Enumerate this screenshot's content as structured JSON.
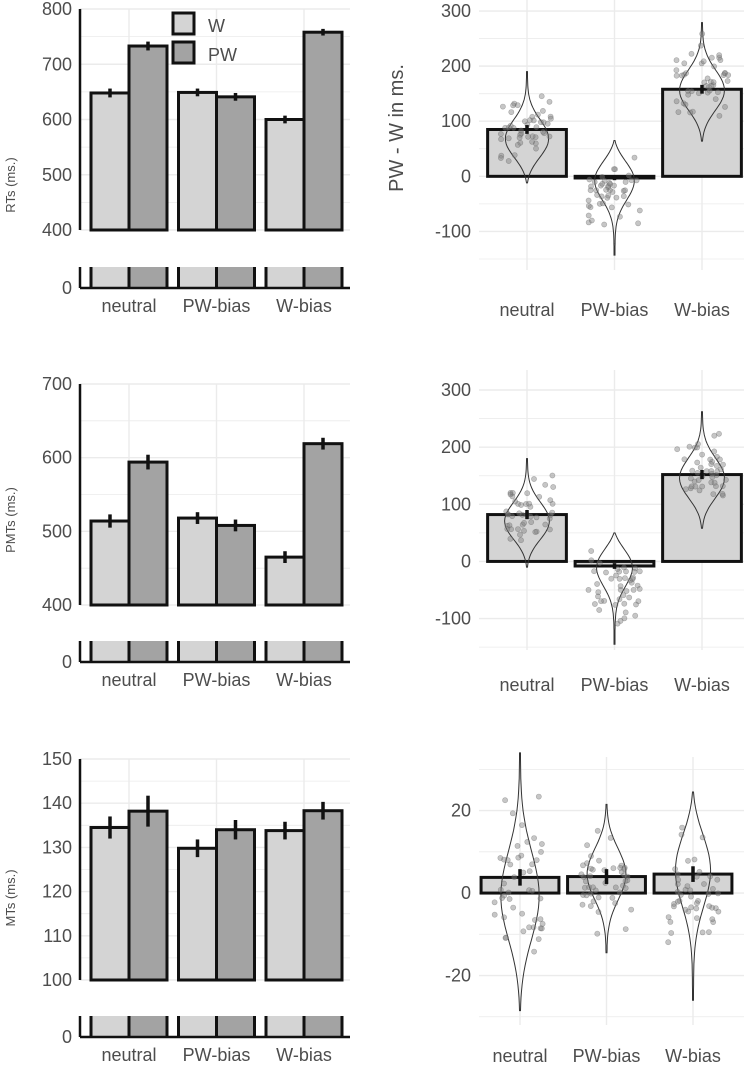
{
  "colors": {
    "w": "#d4d4d4",
    "pw": "#a3a3a3",
    "diff": "#d4d4d4",
    "grid": "#ebebeb",
    "text": "#4d4d4d",
    "dot": "#808080"
  },
  "legend": {
    "w": "W",
    "pw": "PW"
  },
  "shared_y_label": "PW - W in ms.",
  "chart_data": [
    {
      "id": "rt-bars",
      "type": "bar",
      "ylabel": "RTs (ms.)",
      "categories": [
        "neutral",
        "PW-bias",
        "W-bias"
      ],
      "ylim": [
        400,
        800
      ],
      "yticks": [
        "400",
        "500",
        "600",
        "700",
        "800"
      ],
      "zero_label": "0",
      "series": [
        {
          "name": "W",
          "values": [
            648,
            649,
            600
          ],
          "err": [
            8,
            7,
            7
          ]
        },
        {
          "name": "PW",
          "values": [
            733,
            641,
            758
          ],
          "err": [
            8,
            7,
            6
          ]
        }
      ]
    },
    {
      "id": "rt-diff",
      "type": "bar",
      "ylabel": "",
      "categories": [
        "neutral",
        "PW-bias",
        "W-bias"
      ],
      "ylim": [
        -170,
        320
      ],
      "yticks": [
        "-100",
        "0",
        "100",
        "200",
        "300"
      ],
      "values": [
        85,
        -3,
        158
      ],
      "err": [
        8,
        4,
        8
      ],
      "violin_range": [
        [
          -12,
          190
        ],
        [
          -143,
          65
        ],
        [
          64,
          279
        ]
      ],
      "violin_peak": [
        60,
        5,
        150
      ],
      "violin_width": [
        0.26,
        0.26,
        0.26
      ]
    },
    {
      "id": "pmt-bars",
      "type": "bar",
      "ylabel": "PMTs (ms.)",
      "categories": [
        "neutral",
        "PW-bias",
        "W-bias"
      ],
      "ylim": [
        400,
        700
      ],
      "yticks": [
        "400",
        "500",
        "600",
        "700"
      ],
      "zero_label": "0",
      "series": [
        {
          "name": "W",
          "values": [
            514,
            518,
            465
          ],
          "err": [
            9,
            8,
            8
          ]
        },
        {
          "name": "PW",
          "values": [
            594,
            508,
            619
          ],
          "err": [
            10,
            8,
            8
          ]
        }
      ]
    },
    {
      "id": "pmt-diff",
      "type": "bar",
      "ylabel": "",
      "categories": [
        "neutral",
        "PW-bias",
        "W-bias"
      ],
      "ylim": [
        -155,
        335
      ],
      "yticks": [
        "-100",
        "0",
        "100",
        "200",
        "300"
      ],
      "values": [
        82,
        -8,
        152
      ],
      "err": [
        8,
        5,
        8
      ],
      "violin_range": [
        [
          -10,
          180
        ],
        [
          -145,
          50
        ],
        [
          58,
          262
        ]
      ],
      "violin_peak": [
        65,
        5,
        140
      ],
      "violin_width": [
        0.26,
        0.26,
        0.26
      ]
    },
    {
      "id": "mt-bars",
      "type": "bar",
      "ylabel": "MTs (ms.)",
      "categories": [
        "neutral",
        "PW-bias",
        "W-bias"
      ],
      "ylim": [
        100,
        150
      ],
      "yticks": [
        "100",
        "110",
        "120",
        "130",
        "140",
        "150"
      ],
      "zero_label": "0",
      "series": [
        {
          "name": "W",
          "values": [
            134.5,
            129.8,
            133.8
          ],
          "err": [
            2.5,
            2.0,
            2.0
          ]
        },
        {
          "name": "PW",
          "values": [
            138.2,
            134.0,
            138.3
          ],
          "err": [
            3.5,
            2.2,
            2.0
          ]
        }
      ]
    },
    {
      "id": "mt-diff",
      "type": "bar",
      "ylabel": "",
      "categories": [
        "neutral",
        "PW-bias",
        "W-bias"
      ],
      "ylim": [
        -32,
        33
      ],
      "yticks": [
        "-20",
        "0",
        "20"
      ],
      "values": [
        3.8,
        4.0,
        4.6
      ],
      "err": [
        2.0,
        1.8,
        1.9
      ],
      "violin_range": [
        [
          -28.5,
          34
        ],
        [
          -14.5,
          21.5
        ],
        [
          -26,
          24.5
        ]
      ],
      "violin_peak": [
        -2,
        5,
        8
      ],
      "violin_width": [
        0.22,
        0.22,
        0.22
      ]
    }
  ]
}
